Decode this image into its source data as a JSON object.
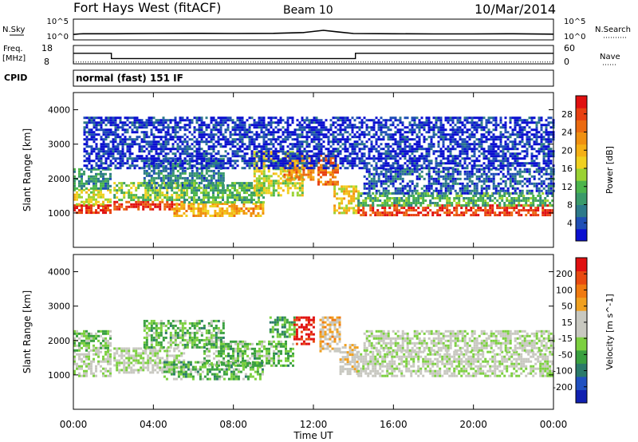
{
  "header": {
    "station": "Fort Hays West (fitACF)",
    "beam": "Beam 10",
    "date": "10/Mar/2014"
  },
  "time_axis": {
    "label": "Time UT",
    "ticks": [
      "00:00",
      "04:00",
      "08:00",
      "12:00",
      "16:00",
      "20:00",
      "00:00"
    ],
    "range_hours": [
      0,
      24
    ]
  },
  "strip_labels": {
    "nsky": "N.Sky",
    "nsky_ticks": [
      "10^5",
      "10^0"
    ],
    "nsearch": "N.Search",
    "nsearch_ticks": [
      "10^5",
      "10^0"
    ],
    "freq": "Freq.",
    "freq_unit": "[MHz]",
    "freq_ticks": [
      "18",
      "8"
    ],
    "nave": "Nave",
    "nave_ticks": [
      "60",
      "0"
    ],
    "cpid": "CPID",
    "cpid_value": "normal (fast) 151 IF"
  },
  "chart_data": [
    {
      "type": "line",
      "name": "N.Sky / N.Search",
      "x_hours": [
        0,
        0.3,
        0.5,
        2,
        4,
        6,
        8,
        10,
        11.5,
        12.5,
        13.2,
        14,
        16,
        18,
        20,
        22,
        24
      ],
      "log_values": [
        1.2,
        1.35,
        1.4,
        1.4,
        1.45,
        1.5,
        1.45,
        1.5,
        1.7,
        2.3,
        1.9,
        1.45,
        1.4,
        1.35,
        1.35,
        1.4,
        1.3
      ]
    },
    {
      "type": "line",
      "name": "Freq",
      "freq_mhz_steps": [
        [
          0,
          1.9,
          14
        ],
        [
          1.9,
          14.1,
          11
        ],
        [
          14.1,
          24,
          14
        ]
      ],
      "nave_level": 6,
      "ylim": [
        8,
        18
      ]
    },
    {
      "type": "heatmap",
      "title": "Power",
      "ylabel": "Slant Range [km]",
      "ylim": [
        0,
        4500
      ],
      "yticks": [
        1000,
        2000,
        3000,
        4000
      ],
      "colorbar_label": "Power [dB]",
      "colorbar_ticks": [
        "28",
        "24",
        "20",
        "16",
        "12",
        "8",
        "4"
      ],
      "colorbar_colors": [
        "#0b10d0",
        "#1f4fb5",
        "#2d7a8a",
        "#3a9a6a",
        "#4cb54c",
        "#9ad233",
        "#f0d020",
        "#f5b015",
        "#f09010",
        "#eb6a10",
        "#e84010",
        "#e01010"
      ],
      "regions": [
        {
          "t": [
            0.0,
            1.8
          ],
          "r": [
            1000,
            1250
          ],
          "v": 28
        },
        {
          "t": [
            0.0,
            1.8
          ],
          "r": [
            1250,
            1700
          ],
          "v": 16
        },
        {
          "t": [
            0.0,
            1.8
          ],
          "r": [
            1700,
            2300
          ],
          "v": 10
        },
        {
          "t": [
            2.0,
            5.5
          ],
          "r": [
            1100,
            1350
          ],
          "v": 26
        },
        {
          "t": [
            2.0,
            5.5
          ],
          "r": [
            1350,
            1900
          ],
          "v": 14
        },
        {
          "t": [
            3.5,
            7.5
          ],
          "r": [
            1700,
            2600
          ],
          "v": 8
        },
        {
          "t": [
            5.0,
            9.5
          ],
          "r": [
            900,
            1300
          ],
          "v": 20
        },
        {
          "t": [
            5.5,
            9.5
          ],
          "r": [
            1300,
            1900
          ],
          "v": 12
        },
        {
          "t": [
            9.0,
            11.5
          ],
          "r": [
            1500,
            2800
          ],
          "v": 16
        },
        {
          "t": [
            10.5,
            12.0
          ],
          "r": [
            2000,
            2700
          ],
          "v": 22
        },
        {
          "t": [
            12.2,
            13.2
          ],
          "r": [
            1800,
            2700
          ],
          "v": 24
        },
        {
          "t": [
            13.0,
            14.2
          ],
          "r": [
            1000,
            1800
          ],
          "v": 18
        },
        {
          "t": [
            14.2,
            24.0
          ],
          "r": [
            950,
            1250
          ],
          "v": 27
        },
        {
          "t": [
            14.2,
            24.0
          ],
          "r": [
            1250,
            1600
          ],
          "v": 12
        },
        {
          "t": [
            14.5,
            24.0
          ],
          "r": [
            1600,
            2300
          ],
          "v": 6
        },
        {
          "t": [
            0.5,
            24.0
          ],
          "r": [
            2300,
            3800
          ],
          "v": 4
        }
      ]
    },
    {
      "type": "heatmap",
      "title": "Velocity",
      "ylabel": "Slant Range [km]",
      "ylim": [
        0,
        4500
      ],
      "yticks": [
        1000,
        2000,
        3000,
        4000
      ],
      "colorbar_label": "Velocity [m s^-1]",
      "colorbar_ticks": [
        "200",
        "100",
        "50",
        "15",
        "-15",
        "-50",
        "-100",
        "-200"
      ],
      "colorbar_colors": [
        "#1020b0",
        "#2050c0",
        "#2a7a6a",
        "#3aa040",
        "#7cd040",
        "#c8c8c0",
        "#c8c8c0",
        "#f0a020",
        "#f07a10",
        "#e84a10",
        "#e01010"
      ],
      "regions": [
        {
          "t": [
            0.0,
            1.8
          ],
          "r": [
            1000,
            1700
          ],
          "v": 0
        },
        {
          "t": [
            0.0,
            1.8
          ],
          "r": [
            1700,
            2300
          ],
          "v": -40
        },
        {
          "t": [
            2.0,
            5.5
          ],
          "r": [
            1100,
            1800
          ],
          "v": 0
        },
        {
          "t": [
            3.5,
            7.5
          ],
          "r": [
            1800,
            2600
          ],
          "v": -60
        },
        {
          "t": [
            4.5,
            9.5
          ],
          "r": [
            900,
            1400
          ],
          "v": -60
        },
        {
          "t": [
            6.5,
            11.0
          ],
          "r": [
            1300,
            2000
          ],
          "v": -50
        },
        {
          "t": [
            9.8,
            11.0
          ],
          "r": [
            2100,
            2700
          ],
          "v": -80
        },
        {
          "t": [
            11.0,
            12.0
          ],
          "r": [
            1900,
            2700
          ],
          "v": 220
        },
        {
          "t": [
            12.3,
            13.3
          ],
          "r": [
            1700,
            2700
          ],
          "v": 60
        },
        {
          "t": [
            13.3,
            14.2
          ],
          "r": [
            1000,
            1900
          ],
          "v": 40
        },
        {
          "t": [
            14.2,
            24.0
          ],
          "r": [
            950,
            1700
          ],
          "v": 0
        },
        {
          "t": [
            14.5,
            24.0
          ],
          "r": [
            1700,
            2300
          ],
          "v": 0
        }
      ]
    }
  ]
}
